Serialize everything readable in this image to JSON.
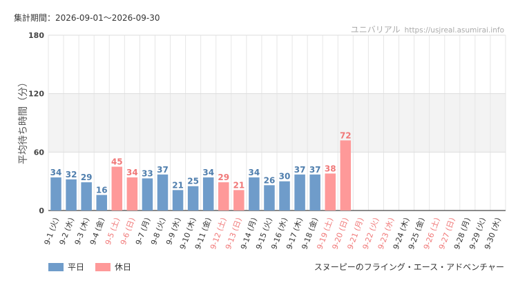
{
  "header": {
    "period": "集計期間：2026-09-01～2026-09-30",
    "site_name": "ユニバリアル",
    "site_url": "https://usjreal.asumirai.info"
  },
  "footer": {
    "attraction": "スヌーピーのフライング・エース・アドベンチャー"
  },
  "colors": {
    "weekday": "#6f9cca",
    "holiday": "#fe9999",
    "weekday_label": "#4f7ead",
    "holiday_label": "#f07878"
  },
  "chart_data": {
    "type": "bar",
    "ylabel": "平均待ち時間（分）",
    "ylim": [
      0,
      180
    ],
    "yticks": [
      0,
      60,
      120,
      180
    ],
    "shaded_band": [
      60,
      120
    ],
    "grid": true,
    "legend_position": "bottom-left",
    "legend": [
      {
        "name": "平日",
        "color": "#6f9cca"
      },
      {
        "name": "休日",
        "color": "#fe9999"
      }
    ],
    "categories": [
      "9-1 (火)",
      "9-2 (水)",
      "9-3 (木)",
      "9-4 (金)",
      "9-5 (土)",
      "9-6 (日)",
      "9-7 (月)",
      "9-8 (火)",
      "9-9 (水)",
      "9-10 (木)",
      "9-11 (金)",
      "9-12 (土)",
      "9-13 (日)",
      "9-14 (月)",
      "9-15 (火)",
      "9-16 (水)",
      "9-17 (木)",
      "9-18 (金)",
      "9-19 (土)",
      "9-20 (日)",
      "9-21 (月)",
      "9-22 (火)",
      "9-23 (水)",
      "9-24 (木)",
      "9-25 (金)",
      "9-26 (土)",
      "9-27 (日)",
      "9-28 (月)",
      "9-29 (火)",
      "9-30 (水)"
    ],
    "values": [
      34,
      32,
      29,
      16,
      45,
      34,
      33,
      37,
      21,
      25,
      34,
      29,
      21,
      34,
      26,
      30,
      37,
      37,
      38,
      72,
      null,
      null,
      null,
      null,
      null,
      null,
      null,
      null,
      null,
      null
    ],
    "holiday": [
      false,
      false,
      false,
      false,
      true,
      true,
      false,
      false,
      false,
      false,
      false,
      true,
      true,
      false,
      false,
      false,
      false,
      false,
      true,
      true,
      true,
      true,
      true,
      false,
      false,
      true,
      true,
      false,
      false,
      false
    ]
  }
}
